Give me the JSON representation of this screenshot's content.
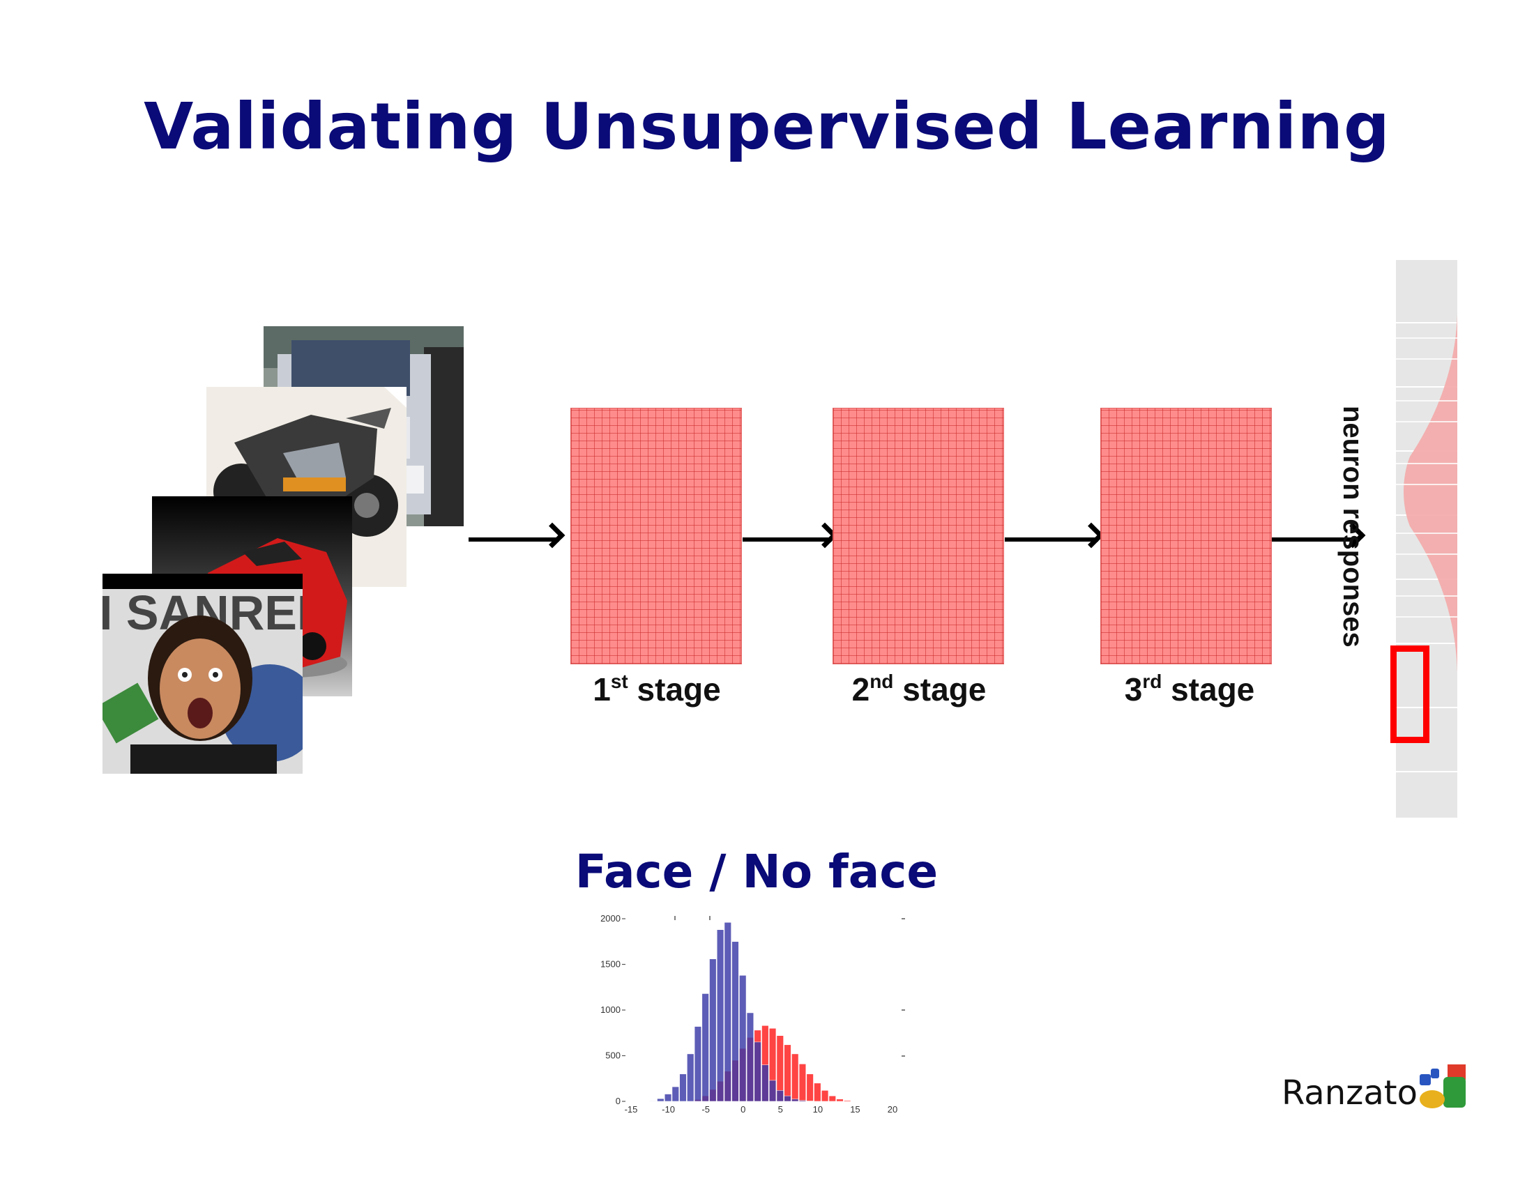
{
  "title": "Validating Unsupervised Learning",
  "subtitle": "Face / No face",
  "author": "Ranzato",
  "stages": [
    {
      "num": "1",
      "sup": "st",
      "word": "stage"
    },
    {
      "num": "2",
      "sup": "nd",
      "word": "stage"
    },
    {
      "num": "3",
      "sup": "rd",
      "word": "stage"
    }
  ],
  "neuron_label": "neuron responses",
  "input_images": [
    "car-image",
    "motorcycle-image",
    "red-car-image",
    "face-image"
  ],
  "colors": {
    "title": "#0a0a78",
    "stage_fill": "#ff8c8c",
    "face_hist": "#ff3b3b",
    "noface_hist": "#3a3aa8",
    "highlight": "#ff0000"
  },
  "chart_data": {
    "type": "bar",
    "title": "",
    "xlabel": "",
    "ylabel": "",
    "xlim": [
      -15,
      20
    ],
    "ylim": [
      0,
      2000
    ],
    "x_ticks": [
      "-15",
      "-10",
      "-5",
      "0",
      "5",
      "10",
      "15",
      "20"
    ],
    "y_ticks": [
      "0",
      "500",
      "1000",
      "1500",
      "2000"
    ],
    "x": [
      -12,
      -11,
      -10,
      -9,
      -8,
      -7,
      -6,
      -5,
      -4,
      -3,
      -2,
      -1,
      0,
      1,
      2,
      3,
      4,
      5,
      6,
      7,
      8,
      9,
      10,
      11,
      12,
      13,
      14,
      15
    ],
    "series": [
      {
        "values": [
          5,
          30,
          80,
          160,
          300,
          520,
          820,
          1180,
          1560,
          1880,
          1960,
          1750,
          1380,
          970,
          650,
          400,
          230,
          120,
          60,
          25,
          10,
          4,
          0,
          0,
          0,
          0,
          0,
          0
        ]
      },
      {
        "values": [
          0,
          0,
          0,
          0,
          0,
          5,
          20,
          60,
          130,
          220,
          330,
          450,
          580,
          700,
          780,
          830,
          800,
          720,
          620,
          520,
          410,
          300,
          200,
          120,
          60,
          25,
          10,
          3
        ]
      }
    ]
  }
}
